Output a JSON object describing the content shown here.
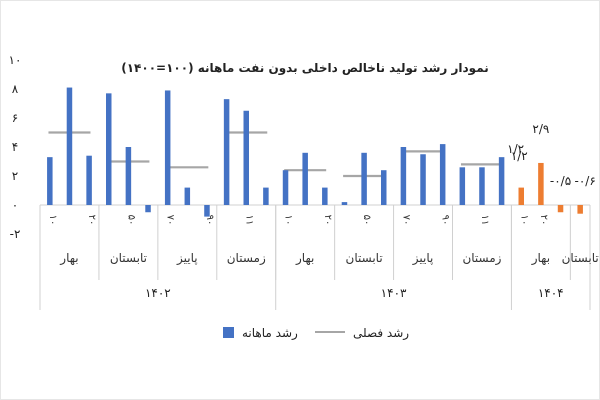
{
  "chart_data": {
    "type": "bar",
    "title": "نمودار رشد تولید ناخالص داخلی بدون نفت ماهانه (۱۰۰=۱۴۰۰)",
    "ylim": [
      -2,
      10
    ],
    "yticks": [
      "-۲",
      "۰",
      "۲",
      "۴",
      "۶",
      "۸",
      "۱۰"
    ],
    "ytick_values": [
      -2,
      0,
      2,
      4,
      6,
      8,
      10
    ],
    "month_ticks": [
      "۱",
      "۲",
      "۳",
      "۴",
      "۵",
      "۶",
      "۷",
      "۸",
      "۹",
      "۱۰",
      "۱۱",
      "۱۲"
    ],
    "month_tick_display": [
      "۱۰",
      "",
      "۲۰",
      "",
      "۵۰",
      "",
      "۷۰",
      "",
      "۹۰",
      "",
      "۱۱",
      ""
    ],
    "years": [
      {
        "label": "۱۴۰۲",
        "seasons": [
          "بهار",
          "تابستان",
          "پاییز",
          "زمستان"
        ],
        "monthly": [
          3.3,
          8.1,
          3.4,
          7.7,
          4.0,
          -0.5,
          7.9,
          1.2,
          -0.8,
          7.3,
          6.5,
          1.2
        ],
        "seasonal": [
          5.0,
          3.0,
          2.6,
          5.0
        ]
      },
      {
        "label": "۱۴۰۳",
        "seasons": [
          "بهار",
          "تابستان",
          "پاییز",
          "زمستان"
        ],
        "monthly": [
          2.4,
          3.6,
          1.2,
          0.2,
          3.6,
          2.4,
          4.0,
          3.5,
          4.2,
          2.6,
          2.6,
          3.3
        ],
        "seasonal": [
          2.4,
          2.0,
          3.7,
          2.8
        ]
      },
      {
        "label": "۱۴۰۴",
        "seasons": [
          "بهار",
          "تابستان"
        ],
        "monthly": [
          1.2,
          2.9,
          -0.5,
          -0.6
        ],
        "month_tick_display": [
          "۱۰",
          "۲۰"
        ],
        "data_labels": [
          "۱/۲",
          "۲/۹",
          "-۰/۵",
          "-۰/۶"
        ]
      }
    ],
    "monthly_color": "#4472c4",
    "monthly_1404_color": "#ed7d31",
    "seasonal_color": "#a6a6a6",
    "series": [
      {
        "name": "رشد ماهانه"
      },
      {
        "name": "رشد فصلی"
      }
    ],
    "data_labels_extra": [
      {
        "text": "۱/۲",
        "value": 3.3
      }
    ],
    "legend": "bottom"
  }
}
